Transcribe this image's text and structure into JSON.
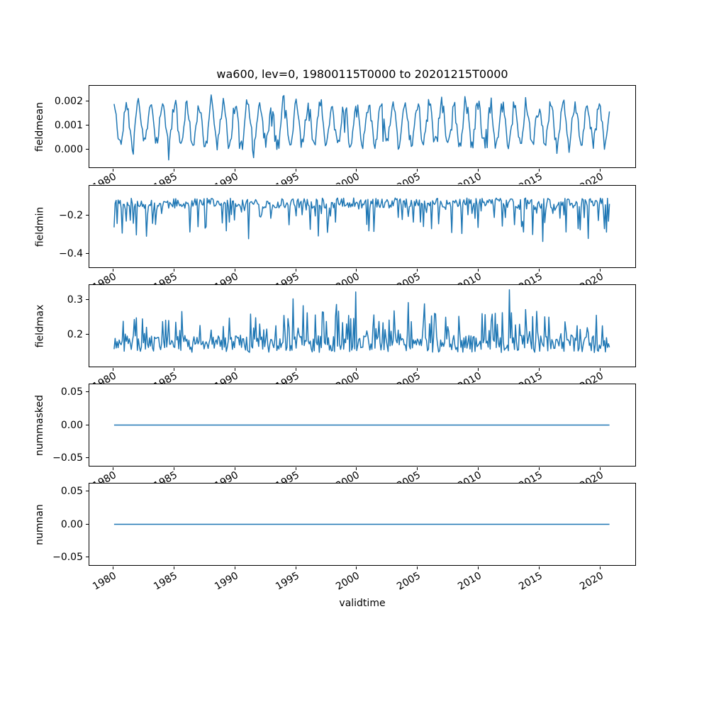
{
  "figure": {
    "title": "wa600, lev=0, 19800115T0000 to 20201215T0000",
    "xlabel": "validtime",
    "background_color": "#ffffff",
    "text_color": "#000000",
    "line_color": "#1f77b4"
  },
  "chart_data": {
    "type": "line",
    "title": "wa600, lev=0, 19800115T0000 to 20201215T0000",
    "x_axis": {
      "label": "validtime",
      "xlim": [
        1978.0,
        2023.0
      ],
      "xticks": [
        1980,
        1985,
        1990,
        1995,
        2000,
        2005,
        2010,
        2015,
        2020
      ],
      "xtick_labels": [
        "1980",
        "1985",
        "1990",
        "1995",
        "2000",
        "2005",
        "2010",
        "2015",
        "2020"
      ],
      "tick_rotation_deg": 30,
      "data_start": 1980.0417,
      "data_end": 2020.9583,
      "samples_per_year": 12
    },
    "grid": false,
    "legend": "none",
    "subplots": [
      {
        "ylabel": "fieldmean",
        "ylim": [
          -0.00075,
          0.00268
        ],
        "yticks": [
          0.0,
          0.001,
          0.002
        ],
        "ytick_labels": [
          "0.000",
          "0.001",
          "0.002"
        ],
        "pattern": "noisy annual seasonal cycle 1980-2020, winter peaks ~0.002 to 0.0025, summer troughs near 0.000, occasional dips to ~-0.0005",
        "series": {
          "kind": "seasonal",
          "base": 0.00105,
          "amp": 0.00085,
          "amp_jitter": 0.5,
          "phase": 0.04,
          "noise": 0.00028,
          "dip_prob": 0.05,
          "dip_max": 0.0012,
          "clamp": [
            -0.00062,
            0.00255
          ],
          "seed": 42
        }
      },
      {
        "ylabel": "fieldmin",
        "ylim": [
          -0.475,
          -0.04
        ],
        "yticks": [
          -0.2,
          -0.4
        ],
        "ytick_labels": [
          "−0.2",
          "−0.4"
        ],
        "pattern": "noisy line around -0.10 to -0.20 with frequent downward spikes to -0.25..-0.35 and rare deep spikes near -0.46",
        "series": {
          "kind": "spiky-down",
          "base": -0.105,
          "spread": 0.055,
          "spike_prob": 0.22,
          "spike_scale": 0.16,
          "deep_prob": 0.012,
          "deep_extra": 0.22,
          "clamp": [
            -0.462,
            -0.048
          ],
          "seed": 7
        }
      },
      {
        "ylabel": "fieldmax",
        "ylim": [
          0.107,
          0.345
        ],
        "yticks": [
          0.2,
          0.3
        ],
        "ytick_labels": [
          "0.2",
          "0.3"
        ],
        "pattern": "noisy line around 0.15-0.20 with upward spikes to 0.25..0.30 and rare spikes near 0.33",
        "series": {
          "kind": "spiky-up",
          "base": 0.148,
          "spread": 0.05,
          "spike_prob": 0.25,
          "spike_scale": 0.09,
          "big_prob": 0.015,
          "big_extra": 0.14,
          "clamp": [
            0.118,
            0.335
          ],
          "seed": 9
        }
      },
      {
        "ylabel": "nummasked",
        "ylim": [
          -0.0625,
          0.0625
        ],
        "yticks": [
          0.05,
          0.0,
          -0.05
        ],
        "ytick_labels": [
          "0.05",
          "0.00",
          "−0.05"
        ],
        "pattern": "constant zero line for entire period",
        "series": {
          "kind": "constant",
          "value": 0.0
        }
      },
      {
        "ylabel": "numnan",
        "ylim": [
          -0.0625,
          0.0625
        ],
        "yticks": [
          0.05,
          0.0,
          -0.05
        ],
        "ytick_labels": [
          "0.05",
          "0.00",
          "−0.05"
        ],
        "pattern": "constant zero line for entire period",
        "series": {
          "kind": "constant",
          "value": 0.0
        }
      }
    ]
  }
}
